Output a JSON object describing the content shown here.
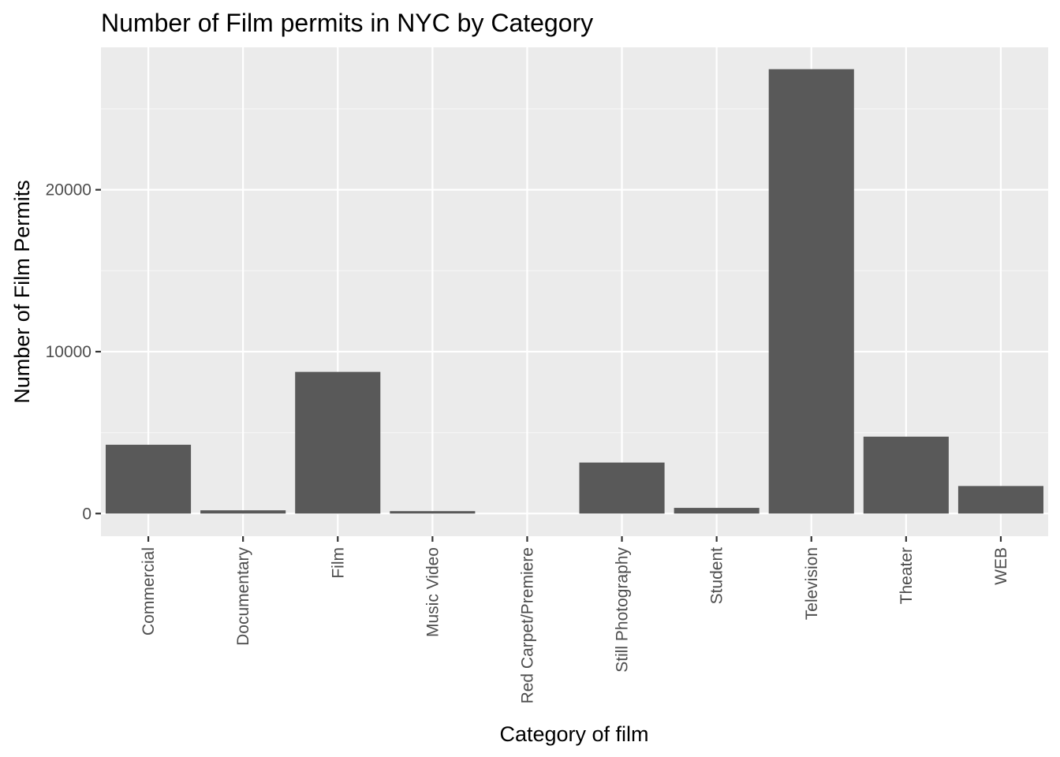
{
  "chart_data": {
    "type": "bar",
    "title": "Number of Film permits in NYC by Category",
    "xlabel": "Category of film",
    "ylabel": "Number of Film Permits",
    "categories": [
      "Commercial",
      "Documentary",
      "Film",
      "Music Video",
      "Red Carpet/Premiere",
      "Still Photography",
      "Student",
      "Television",
      "Theater",
      "WEB"
    ],
    "values": [
      4250,
      200,
      8750,
      150,
      0,
      3150,
      350,
      27450,
      4750,
      1700
    ],
    "ylim": [
      -1400,
      28800
    ],
    "yticks": [
      0,
      10000,
      20000
    ],
    "ytick_labels": [
      "0",
      "10000",
      "20000"
    ],
    "grid": true,
    "legend": "none",
    "colors": {
      "bar": "#595959",
      "panel": "#ebebeb",
      "grid_major": "#ffffff",
      "grid_minor": "#f5f5f5",
      "tick_text": "#4d4d4d",
      "tick_mark": "#333333"
    }
  }
}
